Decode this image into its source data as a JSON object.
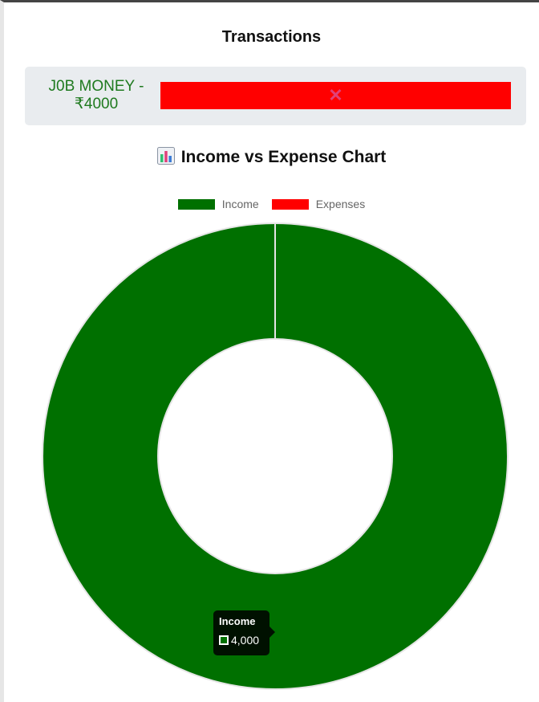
{
  "page": {
    "title": "Transactions"
  },
  "transaction": {
    "label": "J0B MONEY - ₹4000",
    "delete_symbol": "✕",
    "delete_color": "#ff0000"
  },
  "chart_section": {
    "heading": "Income vs Expense Chart",
    "icon": "bar-chart-icon"
  },
  "chart_data": {
    "type": "pie",
    "variant": "doughnut",
    "categories": [
      "Income",
      "Expenses"
    ],
    "values": [
      4000,
      0
    ],
    "colors": [
      "#007000",
      "#ff0000"
    ],
    "legend_position": "top",
    "tooltip": {
      "title": "Income",
      "value": "4,000"
    }
  }
}
